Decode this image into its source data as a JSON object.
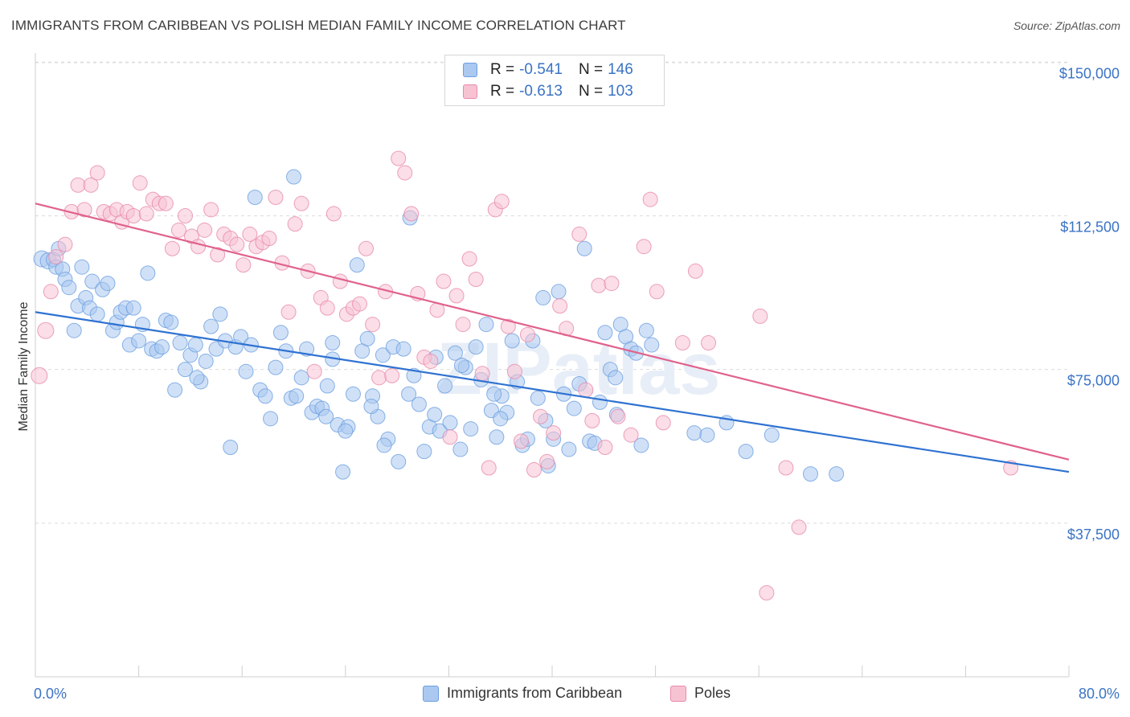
{
  "title": "IMMIGRANTS FROM CARIBBEAN VS POLISH MEDIAN FAMILY INCOME CORRELATION CHART",
  "source": "Source: ZipAtlas.com",
  "legend": [
    {
      "r_label": "R =",
      "r_value": "-0.541",
      "n_label": "N =",
      "n_value": "146"
    },
    {
      "r_label": "R =",
      "r_value": "-0.613",
      "n_label": "N =",
      "n_value": "103"
    }
  ],
  "watermark": "ZIPatlas",
  "chart_data": {
    "type": "scatter",
    "title": "IMMIGRANTS FROM CARIBBEAN VS POLISH MEDIAN FAMILY INCOME CORRELATION CHART",
    "xlabel": "",
    "ylabel": "Median Family Income",
    "xlim": [
      0,
      80
    ],
    "ylim": [
      0,
      153000
    ],
    "x_tick_labels": [
      "0.0%",
      "80.0%"
    ],
    "y_ticks": [
      37500,
      75000,
      112500,
      150000
    ],
    "y_tick_labels": [
      "$37,500",
      "$75,000",
      "$112,500",
      "$150,000"
    ],
    "grid": true,
    "legend_position": "top-center",
    "colors": {
      "caribbean_fill": "#aac8f0",
      "caribbean_line": "#2f72d1",
      "poles_fill": "#f7b8cb",
      "poles_line": "#e0628c",
      "tick_label": "#3b73c4"
    },
    "series": [
      {
        "name": "Immigrants from Caribbean",
        "trend": {
          "x": [
            0,
            80
          ],
          "y": [
            89000,
            50000
          ]
        },
        "points": [
          [
            0.5,
            102000
          ],
          [
            1.0,
            101500
          ],
          [
            1.4,
            101800
          ],
          [
            1.6,
            100000
          ],
          [
            1.8,
            104500
          ],
          [
            2.1,
            99500
          ],
          [
            2.3,
            97000
          ],
          [
            2.6,
            95000
          ],
          [
            3.0,
            84500
          ],
          [
            3.3,
            90500
          ],
          [
            3.6,
            100000
          ],
          [
            3.9,
            92500
          ],
          [
            4.2,
            90000
          ],
          [
            4.4,
            96500
          ],
          [
            4.8,
            88500
          ],
          [
            5.2,
            94500
          ],
          [
            5.6,
            96000
          ],
          [
            6.0,
            84500
          ],
          [
            6.3,
            86500
          ],
          [
            6.6,
            89000
          ],
          [
            7.0,
            90000
          ],
          [
            7.3,
            81000
          ],
          [
            7.6,
            90000
          ],
          [
            8.0,
            82000
          ],
          [
            8.3,
            86000
          ],
          [
            8.7,
            98500
          ],
          [
            9.0,
            80000
          ],
          [
            9.4,
            79500
          ],
          [
            9.8,
            80500
          ],
          [
            10.1,
            87000
          ],
          [
            10.5,
            86500
          ],
          [
            10.8,
            70000
          ],
          [
            11.2,
            81500
          ],
          [
            11.6,
            75000
          ],
          [
            12.0,
            78500
          ],
          [
            12.4,
            81000
          ],
          [
            12.8,
            72000
          ],
          [
            13.2,
            77000
          ],
          [
            13.6,
            85500
          ],
          [
            14.0,
            80000
          ],
          [
            14.3,
            88500
          ],
          [
            14.7,
            82000
          ],
          [
            15.1,
            56000
          ],
          [
            15.5,
            80500
          ],
          [
            15.9,
            83000
          ],
          [
            16.3,
            74500
          ],
          [
            16.7,
            81000
          ],
          [
            17.0,
            117000
          ],
          [
            17.4,
            70000
          ],
          [
            17.8,
            68500
          ],
          [
            18.2,
            63000
          ],
          [
            18.6,
            75500
          ],
          [
            19.0,
            84000
          ],
          [
            19.4,
            79500
          ],
          [
            19.8,
            68000
          ],
          [
            20.2,
            68500
          ],
          [
            20.6,
            73000
          ],
          [
            21.0,
            80000
          ],
          [
            21.4,
            64500
          ],
          [
            21.8,
            66000
          ],
          [
            22.2,
            65500
          ],
          [
            22.6,
            71000
          ],
          [
            23.0,
            77500
          ],
          [
            23.4,
            61500
          ],
          [
            23.8,
            50000
          ],
          [
            24.2,
            61000
          ],
          [
            24.6,
            69000
          ],
          [
            24.9,
            100500
          ],
          [
            25.3,
            79500
          ],
          [
            25.7,
            82500
          ],
          [
            26.1,
            68500
          ],
          [
            26.5,
            63500
          ],
          [
            26.9,
            78500
          ],
          [
            27.3,
            58000
          ],
          [
            27.7,
            80500
          ],
          [
            28.1,
            52500
          ],
          [
            28.5,
            80000
          ],
          [
            28.9,
            69000
          ],
          [
            29.3,
            73500
          ],
          [
            29.7,
            66500
          ],
          [
            30.1,
            55000
          ],
          [
            30.5,
            61000
          ],
          [
            30.9,
            64000
          ],
          [
            31.3,
            60000
          ],
          [
            31.7,
            71000
          ],
          [
            32.1,
            62000
          ],
          [
            32.5,
            79000
          ],
          [
            32.9,
            55500
          ],
          [
            33.3,
            75500
          ],
          [
            33.7,
            60500
          ],
          [
            34.1,
            80500
          ],
          [
            34.5,
            72500
          ],
          [
            34.9,
            86000
          ],
          [
            35.3,
            65000
          ],
          [
            35.7,
            58500
          ],
          [
            36.1,
            68500
          ],
          [
            36.5,
            64500
          ],
          [
            36.9,
            82000
          ],
          [
            37.3,
            72000
          ],
          [
            37.7,
            56500
          ],
          [
            38.1,
            58000
          ],
          [
            38.5,
            82000
          ],
          [
            38.9,
            68000
          ],
          [
            39.3,
            92500
          ],
          [
            39.7,
            51500
          ],
          [
            40.1,
            58000
          ],
          [
            40.5,
            94000
          ],
          [
            40.9,
            69000
          ],
          [
            41.3,
            55500
          ],
          [
            41.7,
            65500
          ],
          [
            42.1,
            71500
          ],
          [
            42.5,
            104500
          ],
          [
            42.9,
            57500
          ],
          [
            43.3,
            57000
          ],
          [
            43.7,
            67000
          ],
          [
            44.1,
            84000
          ],
          [
            44.5,
            75000
          ],
          [
            44.9,
            73000
          ],
          [
            45.3,
            86000
          ],
          [
            45.7,
            83000
          ],
          [
            46.1,
            80000
          ],
          [
            46.5,
            79000
          ],
          [
            46.9,
            56500
          ],
          [
            47.3,
            84500
          ],
          [
            47.7,
            81000
          ],
          [
            51.0,
            59500
          ],
          [
            52.0,
            59000
          ],
          [
            53.5,
            62000
          ],
          [
            55.0,
            55000
          ],
          [
            57.0,
            59000
          ],
          [
            60.0,
            49500
          ],
          [
            62.0,
            49500
          ],
          [
            20.0,
            122000
          ],
          [
            29.0,
            112000
          ],
          [
            31.0,
            78000
          ],
          [
            35.5,
            69000
          ],
          [
            22.5,
            63500
          ],
          [
            26.0,
            66000
          ],
          [
            27.0,
            56500
          ],
          [
            24.0,
            60000
          ],
          [
            36.0,
            63000
          ],
          [
            33.0,
            76000
          ],
          [
            12.5,
            73000
          ],
          [
            23.0,
            81500
          ],
          [
            39.5,
            62500
          ],
          [
            45.0,
            64000
          ]
        ]
      },
      {
        "name": "Poles",
        "trend": {
          "x": [
            0,
            80
          ],
          "y": [
            115500,
            53000
          ]
        },
        "points": [
          [
            0.3,
            73500
          ],
          [
            0.8,
            84500
          ],
          [
            1.2,
            94000
          ],
          [
            1.6,
            102500
          ],
          [
            2.3,
            105500
          ],
          [
            2.8,
            113500
          ],
          [
            3.3,
            120000
          ],
          [
            3.8,
            114000
          ],
          [
            4.3,
            120000
          ],
          [
            4.8,
            123000
          ],
          [
            5.3,
            113500
          ],
          [
            5.8,
            113000
          ],
          [
            6.3,
            114000
          ],
          [
            6.7,
            111000
          ],
          [
            7.1,
            113500
          ],
          [
            7.6,
            112500
          ],
          [
            8.1,
            120500
          ],
          [
            8.6,
            113000
          ],
          [
            9.1,
            116500
          ],
          [
            9.6,
            115500
          ],
          [
            10.1,
            115500
          ],
          [
            10.6,
            104500
          ],
          [
            11.1,
            109000
          ],
          [
            11.6,
            112500
          ],
          [
            12.1,
            107500
          ],
          [
            12.6,
            105000
          ],
          [
            13.1,
            109000
          ],
          [
            13.6,
            114000
          ],
          [
            14.1,
            103000
          ],
          [
            14.6,
            108000
          ],
          [
            15.1,
            107000
          ],
          [
            15.6,
            105500
          ],
          [
            16.1,
            100500
          ],
          [
            16.6,
            108000
          ],
          [
            17.1,
            105000
          ],
          [
            17.6,
            106000
          ],
          [
            18.1,
            107000
          ],
          [
            18.6,
            117000
          ],
          [
            19.1,
            101000
          ],
          [
            19.6,
            89000
          ],
          [
            20.1,
            110500
          ],
          [
            20.6,
            115500
          ],
          [
            21.1,
            99000
          ],
          [
            21.6,
            74500
          ],
          [
            22.1,
            92500
          ],
          [
            22.6,
            90000
          ],
          [
            23.1,
            113000
          ],
          [
            23.6,
            96500
          ],
          [
            24.1,
            88500
          ],
          [
            24.6,
            90000
          ],
          [
            25.1,
            91000
          ],
          [
            25.6,
            104500
          ],
          [
            26.1,
            86000
          ],
          [
            26.6,
            73000
          ],
          [
            27.1,
            94000
          ],
          [
            27.6,
            73500
          ],
          [
            28.1,
            126500
          ],
          [
            28.6,
            123000
          ],
          [
            29.1,
            113000
          ],
          [
            29.6,
            93500
          ],
          [
            30.1,
            78000
          ],
          [
            30.6,
            77000
          ],
          [
            31.1,
            89500
          ],
          [
            31.6,
            96500
          ],
          [
            32.1,
            58500
          ],
          [
            32.6,
            93000
          ],
          [
            33.1,
            86000
          ],
          [
            33.6,
            102000
          ],
          [
            34.1,
            97000
          ],
          [
            34.6,
            74000
          ],
          [
            35.1,
            51000
          ],
          [
            35.6,
            114000
          ],
          [
            36.1,
            116000
          ],
          [
            36.6,
            85500
          ],
          [
            37.1,
            74500
          ],
          [
            37.6,
            57500
          ],
          [
            38.1,
            83500
          ],
          [
            38.6,
            50500
          ],
          [
            39.1,
            63500
          ],
          [
            39.6,
            52500
          ],
          [
            40.1,
            59500
          ],
          [
            40.6,
            90500
          ],
          [
            41.1,
            85000
          ],
          [
            42.1,
            108000
          ],
          [
            42.6,
            70000
          ],
          [
            43.1,
            62500
          ],
          [
            43.6,
            95500
          ],
          [
            44.1,
            56000
          ],
          [
            44.6,
            96000
          ],
          [
            45.1,
            63500
          ],
          [
            46.1,
            59000
          ],
          [
            47.1,
            105000
          ],
          [
            47.6,
            116500
          ],
          [
            48.1,
            94000
          ],
          [
            48.6,
            62000
          ],
          [
            50.1,
            81500
          ],
          [
            51.1,
            99000
          ],
          [
            52.1,
            81500
          ],
          [
            58.1,
            51000
          ],
          [
            59.1,
            36500
          ],
          [
            56.1,
            88000
          ],
          [
            56.6,
            20500
          ],
          [
            75.5,
            51000
          ]
        ]
      }
    ]
  }
}
